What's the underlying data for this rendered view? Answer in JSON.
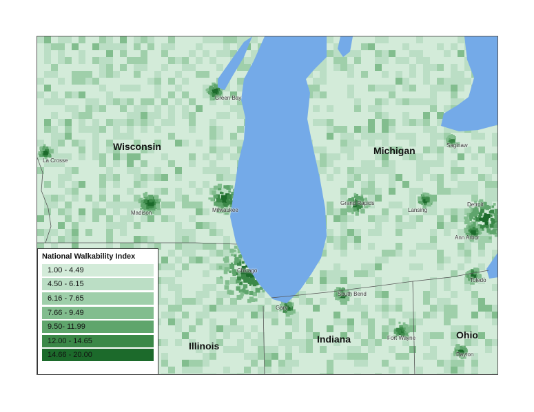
{
  "map": {
    "states": [
      {
        "name": "Wisconsin"
      },
      {
        "name": "Michigan"
      },
      {
        "name": "Illinois"
      },
      {
        "name": "Indiana"
      },
      {
        "name": "Ohio"
      }
    ],
    "cities": [
      {
        "name": "Green Bay"
      },
      {
        "name": "La Crosse"
      },
      {
        "name": "Madison"
      },
      {
        "name": "Milwaukee"
      },
      {
        "name": "Chicago"
      },
      {
        "name": "Gary"
      },
      {
        "name": "South Bend"
      },
      {
        "name": "Fort Wayne"
      },
      {
        "name": "Grand Rapids"
      },
      {
        "name": "Lansing"
      },
      {
        "name": "Saginaw"
      },
      {
        "name": "Detroit"
      },
      {
        "name": "Ann Arbor"
      },
      {
        "name": "Toledo"
      },
      {
        "name": "Dayton"
      }
    ],
    "colors": {
      "water": "#74aae8",
      "border": "#555555"
    }
  },
  "legend": {
    "title": "National Walkability Index",
    "classes": [
      {
        "label": "1.00 - 4.49",
        "color": "#d3ebd9"
      },
      {
        "label": "4.50 - 6.15",
        "color": "#bbdec5"
      },
      {
        "label": "6.16 - 7.65",
        "color": "#9fcfaa"
      },
      {
        "label": "7.66 - 9.49",
        "color": "#82bd8e"
      },
      {
        "label": "9.50- 11.99",
        "color": "#5fa56c"
      },
      {
        "label": "12.00 - 14.65",
        "color": "#3b8848"
      },
      {
        "label": "14.66 - 20.00",
        "color": "#1c6a2b"
      }
    ]
  }
}
